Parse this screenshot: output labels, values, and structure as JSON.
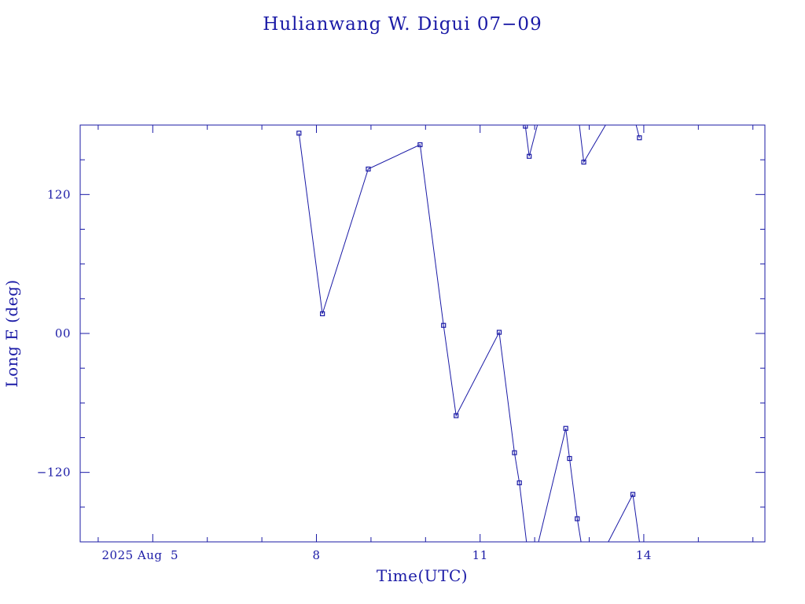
{
  "chart_data": {
    "type": "line",
    "title": "Hulianwang W. Digui 07−09",
    "xlabel": "Time(UTC)",
    "ylabel": "Long E (deg)",
    "x_unit": "days (2025 Aug)",
    "xlim": [
      3.67,
      16.22
    ],
    "ylim": [
      -180,
      180
    ],
    "x_ticks": [
      {
        "value": 5,
        "label": "2025 Aug  5"
      },
      {
        "value": 8,
        "label": "8"
      },
      {
        "value": 11,
        "label": "11"
      },
      {
        "value": 14,
        "label": "14"
      }
    ],
    "y_ticks": [
      {
        "value": 120,
        "label": "120"
      },
      {
        "value": 0,
        "label": "00"
      },
      {
        "value": -120,
        "label": "−120"
      }
    ],
    "grid": false,
    "legend": "none",
    "series": [
      {
        "color": "#1a1aa6",
        "points": [
          {
            "x": 7.68,
            "y": 173,
            "marker": true
          },
          {
            "x": 8.11,
            "y": 17,
            "marker": true
          },
          {
            "x": 8.95,
            "y": 142,
            "marker": true
          },
          {
            "x": 9.9,
            "y": 163,
            "marker": true
          },
          {
            "x": 10.33,
            "y": 7,
            "marker": true
          },
          {
            "x": 10.56,
            "y": -71,
            "marker": true
          },
          {
            "x": 11.35,
            "y": 1,
            "marker": true
          },
          {
            "x": 11.63,
            "y": -103,
            "marker": true
          },
          {
            "x": 11.72,
            "y": -129,
            "marker": true
          },
          {
            "x": 11.85,
            "y": -180,
            "marker": false
          },
          {
            "x": "break"
          },
          {
            "x": 12.07,
            "y": -180,
            "marker": false
          },
          {
            "x": 12.57,
            "y": -82,
            "marker": true
          },
          {
            "x": 12.64,
            "y": -108,
            "marker": true
          },
          {
            "x": 12.78,
            "y": -160,
            "marker": true
          },
          {
            "x": 12.85,
            "y": -180,
            "marker": false
          },
          {
            "x": "break"
          },
          {
            "x": 11.82,
            "y": 180,
            "marker": false
          },
          {
            "x": 11.83,
            "y": 179,
            "marker": true
          },
          {
            "x": 11.9,
            "y": 153,
            "marker": true
          },
          {
            "x": 12.05,
            "y": 180,
            "marker": false
          },
          {
            "x": "break"
          },
          {
            "x": 12.82,
            "y": 180,
            "marker": false
          },
          {
            "x": 12.9,
            "y": 148,
            "marker": true
          },
          {
            "x": 13.3,
            "y": 180,
            "marker": false
          },
          {
            "x": "break"
          },
          {
            "x": 13.35,
            "y": -180,
            "marker": false
          },
          {
            "x": 13.8,
            "y": -139,
            "marker": true
          },
          {
            "x": 13.92,
            "y": -180,
            "marker": false
          },
          {
            "x": "break"
          },
          {
            "x": 13.86,
            "y": 180,
            "marker": false
          },
          {
            "x": 13.92,
            "y": 169,
            "marker": true
          }
        ]
      }
    ]
  }
}
